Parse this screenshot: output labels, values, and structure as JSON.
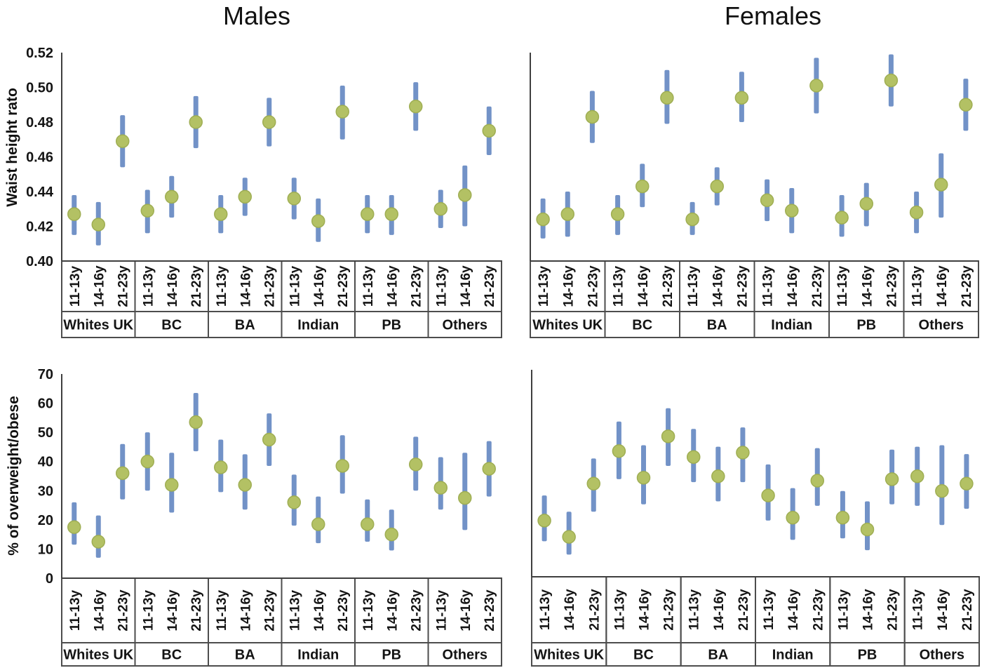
{
  "figure": {
    "background": "#ffffff"
  },
  "chart_data": {
    "type": "scatter",
    "description": "Point estimates with vertical 95% confidence-interval error bars, by ethnic group and age band, for males and females",
    "columns": [
      "Males",
      "Females"
    ],
    "groups": [
      "Whites UK",
      "BC",
      "BA",
      "Indian",
      "PB",
      "Others"
    ],
    "age_categories": [
      "11-13y",
      "14-16y",
      "21-23y"
    ],
    "grid": false,
    "legend": null,
    "rows": [
      {
        "ylabel": "Waist height rato",
        "ylim": [
          0.4,
          0.52
        ],
        "yticks": [
          "0.52",
          "0.50",
          "0.48",
          "0.46",
          "0.44",
          "0.42",
          "0.40"
        ]
      },
      {
        "ylabel": "% of overweight/obese",
        "ylim": [
          0,
          70
        ],
        "yticks": [
          "70",
          "60",
          "50",
          "40",
          "30",
          "20",
          "10",
          "0"
        ]
      }
    ],
    "colors": {
      "point": "#b3c164",
      "point_stroke": "#9fae53",
      "error_bar": "#7292c7",
      "axis": "#3f3f3f",
      "cell_border": "#4d4d4d",
      "text": "#141414"
    },
    "panels": [
      {
        "name": "males-waist-height-ratio",
        "column": "Males",
        "measure": "Waist height rato",
        "row": 0,
        "points": [
          [
            0.427,
            0.415,
            0.438
          ],
          [
            0.421,
            0.409,
            0.434
          ],
          [
            0.469,
            0.454,
            0.484
          ],
          [
            0.429,
            0.416,
            0.441
          ],
          [
            0.437,
            0.425,
            0.449
          ],
          [
            0.48,
            0.465,
            0.495
          ],
          [
            0.427,
            0.416,
            0.438
          ],
          [
            0.437,
            0.426,
            0.448
          ],
          [
            0.48,
            0.466,
            0.494
          ],
          [
            0.436,
            0.424,
            0.448
          ],
          [
            0.423,
            0.411,
            0.436
          ],
          [
            0.486,
            0.47,
            0.501
          ],
          [
            0.427,
            0.416,
            0.438
          ],
          [
            0.427,
            0.415,
            0.438
          ],
          [
            0.489,
            0.475,
            0.503
          ],
          [
            0.43,
            0.419,
            0.441
          ],
          [
            0.438,
            0.42,
            0.455
          ],
          [
            0.475,
            0.461,
            0.489
          ]
        ]
      },
      {
        "name": "females-waist-height-ratio",
        "column": "Females",
        "measure": "Waist height rato",
        "row": 0,
        "points": [
          [
            0.424,
            0.413,
            0.436
          ],
          [
            0.427,
            0.414,
            0.44
          ],
          [
            0.483,
            0.468,
            0.498
          ],
          [
            0.427,
            0.415,
            0.438
          ],
          [
            0.443,
            0.431,
            0.456
          ],
          [
            0.494,
            0.479,
            0.51
          ],
          [
            0.424,
            0.415,
            0.434
          ],
          [
            0.443,
            0.432,
            0.454
          ],
          [
            0.494,
            0.48,
            0.509
          ],
          [
            0.435,
            0.423,
            0.447
          ],
          [
            0.429,
            0.416,
            0.442
          ],
          [
            0.501,
            0.485,
            0.517
          ],
          [
            0.425,
            0.414,
            0.438
          ],
          [
            0.433,
            0.42,
            0.445
          ],
          [
            0.504,
            0.489,
            0.519
          ],
          [
            0.428,
            0.416,
            0.44
          ],
          [
            0.444,
            0.425,
            0.462
          ],
          [
            0.49,
            0.475,
            0.505
          ]
        ]
      },
      {
        "name": "males-overweight-obese",
        "column": "Males",
        "measure": "% of overweight/obese",
        "row": 1,
        "points": [
          [
            17.5,
            11.5,
            26
          ],
          [
            12.5,
            7,
            21.5
          ],
          [
            36,
            27,
            46
          ],
          [
            40,
            30,
            50
          ],
          [
            32,
            22.5,
            43
          ],
          [
            53.5,
            43.5,
            63.5
          ],
          [
            38,
            29.5,
            47.5
          ],
          [
            32,
            23.5,
            42.5
          ],
          [
            47.5,
            38.5,
            56.5
          ],
          [
            26,
            18,
            35.5
          ],
          [
            18.5,
            12,
            28
          ],
          [
            38.5,
            29,
            49
          ],
          [
            18.5,
            12.5,
            27
          ],
          [
            15,
            9.5,
            23.5
          ],
          [
            39,
            30,
            48.5
          ],
          [
            31,
            23.5,
            41.5
          ],
          [
            27.5,
            16.5,
            43
          ],
          [
            37.5,
            28,
            47
          ]
        ]
      },
      {
        "name": "females-overweight-obese",
        "column": "Females",
        "measure": "% of overweight/obese",
        "row": 1,
        "points": [
          [
            19,
            12,
            27.5
          ],
          [
            13.5,
            7.5,
            22
          ],
          [
            31.5,
            22,
            40
          ],
          [
            42.5,
            33,
            52.5
          ],
          [
            33.5,
            24.5,
            44.5
          ],
          [
            47.5,
            37.5,
            57
          ],
          [
            40.5,
            32,
            50
          ],
          [
            34,
            25.5,
            44
          ],
          [
            42,
            32,
            50.5
          ],
          [
            27.5,
            19,
            38
          ],
          [
            20,
            12.5,
            30
          ],
          [
            32.5,
            24,
            43.5
          ],
          [
            20,
            13,
            29
          ],
          [
            16,
            9,
            25.5
          ],
          [
            33,
            24.5,
            43
          ],
          [
            34,
            24,
            44
          ],
          [
            29,
            17.5,
            44.5
          ],
          [
            31.5,
            23,
            41.5
          ]
        ]
      }
    ]
  }
}
